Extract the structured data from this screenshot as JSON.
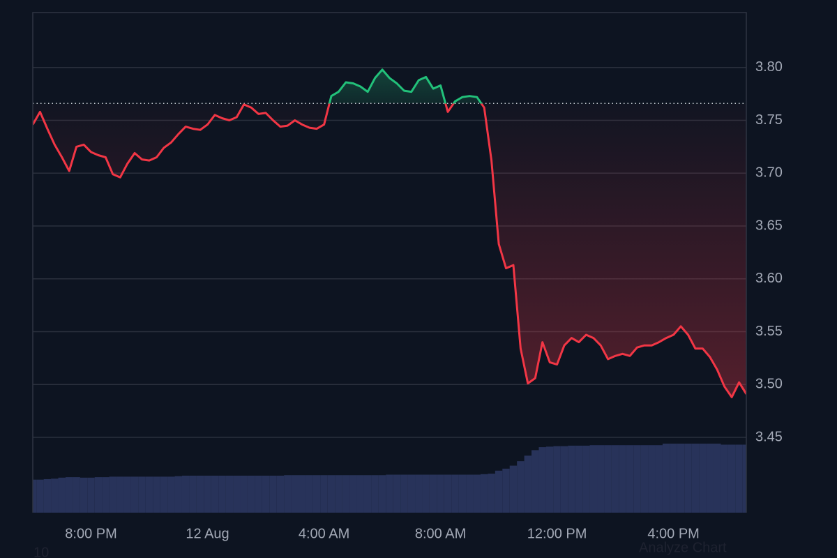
{
  "chart_data": {
    "type": "line",
    "x": [
      18,
      18.25,
      18.5,
      18.75,
      19,
      19.25,
      19.5,
      19.75,
      20,
      20.25,
      20.5,
      20.75,
      21,
      21.25,
      21.5,
      21.75,
      22,
      22.25,
      22.5,
      22.75,
      23,
      23.25,
      23.5,
      23.75,
      24,
      24.25,
      24.5,
      24.75,
      25,
      25.25,
      25.5,
      25.75,
      26,
      26.25,
      26.5,
      26.75,
      27,
      27.25,
      27.5,
      27.75,
      28,
      28.25,
      28.5,
      28.75,
      29,
      29.25,
      29.5,
      29.75,
      30,
      30.25,
      30.5,
      30.75,
      31,
      31.25,
      31.5,
      31.75,
      32,
      32.25,
      32.5,
      32.75,
      33,
      33.25,
      33.5,
      33.75,
      34,
      34.25,
      34.5,
      34.75,
      35,
      35.25,
      35.5,
      35.75,
      36,
      36.25,
      36.5,
      36.75,
      37,
      37.25,
      37.5,
      37.75,
      38,
      38.25,
      38.5,
      38.75,
      39,
      39.25,
      39.5,
      39.75,
      40,
      40.25,
      40.5,
      40.75,
      41,
      41.25,
      41.5,
      41.75,
      42,
      42.25,
      42.5
    ],
    "values": [
      3.746,
      3.758,
      3.742,
      3.727,
      3.715,
      3.702,
      3.725,
      3.727,
      3.72,
      3.717,
      3.715,
      3.699,
      3.696,
      3.709,
      3.719,
      3.713,
      3.712,
      3.715,
      3.724,
      3.729,
      3.737,
      3.744,
      3.742,
      3.741,
      3.746,
      3.755,
      3.752,
      3.75,
      3.753,
      3.765,
      3.762,
      3.756,
      3.757,
      3.75,
      3.744,
      3.745,
      3.75,
      3.746,
      3.743,
      3.742,
      3.746,
      3.773,
      3.777,
      3.786,
      3.785,
      3.782,
      3.777,
      3.79,
      3.798,
      3.79,
      3.785,
      3.778,
      3.777,
      3.788,
      3.791,
      3.78,
      3.783,
      3.758,
      3.768,
      3.772,
      3.773,
      3.772,
      3.762,
      3.712,
      3.633,
      3.61,
      3.613,
      3.534,
      3.501,
      3.506,
      3.54,
      3.521,
      3.519,
      3.537,
      3.544,
      3.54,
      3.547,
      3.544,
      3.537,
      3.524,
      3.527,
      3.529,
      3.527,
      3.535,
      3.537,
      3.537,
      3.54,
      3.544,
      3.547,
      3.555,
      3.547,
      3.534,
      3.534,
      3.526,
      3.514,
      3.498,
      3.488,
      3.502,
      3.491
    ],
    "color_up": "#22c17a",
    "color_down": "#f23645",
    "baseline": 3.766,
    "volume": {
      "color": "#28335a",
      "ylim": [
        0,
        100
      ],
      "values": [
        6.6,
        6.6,
        6.7,
        6.8,
        7.0,
        7.1,
        7.1,
        7.0,
        7.0,
        7.1,
        7.1,
        7.2,
        7.2,
        7.2,
        7.2,
        7.2,
        7.2,
        7.2,
        7.2,
        7.2,
        7.3,
        7.4,
        7.4,
        7.4,
        7.4,
        7.4,
        7.4,
        7.4,
        7.4,
        7.4,
        7.4,
        7.4,
        7.4,
        7.4,
        7.4,
        7.5,
        7.5,
        7.5,
        7.5,
        7.5,
        7.5,
        7.5,
        7.5,
        7.5,
        7.5,
        7.5,
        7.5,
        7.5,
        7.5,
        7.6,
        7.6,
        7.6,
        7.6,
        7.6,
        7.6,
        7.6,
        7.6,
        7.6,
        7.6,
        7.6,
        7.6,
        7.6,
        7.7,
        7.8,
        8.4,
        8.8,
        9.4,
        10.3,
        11.4,
        12.5,
        13.1,
        13.2,
        13.3,
        13.3,
        13.4,
        13.4,
        13.4,
        13.5,
        13.5,
        13.5,
        13.5,
        13.5,
        13.5,
        13.5,
        13.5,
        13.5,
        13.5,
        13.8,
        13.8,
        13.8,
        13.8,
        13.8,
        13.8,
        13.8,
        13.8,
        13.6,
        13.6,
        13.6,
        13.6
      ]
    },
    "xlim": [
      18,
      42.5
    ],
    "xticks": [
      {
        "value": 20,
        "label": "8:00 PM"
      },
      {
        "value": 24,
        "label": "12 Aug"
      },
      {
        "value": 28,
        "label": "4:00 AM"
      },
      {
        "value": 32,
        "label": "8:00 AM"
      },
      {
        "value": 36,
        "label": "12:00 PM"
      },
      {
        "value": 40,
        "label": "4:00 PM"
      }
    ],
    "ylim": [
      3.3787,
      3.852
    ],
    "yticks": [
      3.45,
      {
        "value": 3.5,
        "label": "3.50"
      },
      3.55,
      {
        "value": 3.6,
        "label": "3.60"
      },
      3.65,
      {
        "value": 3.7,
        "label": "3.70"
      },
      3.75,
      {
        "value": 3.8,
        "label": "3.80"
      }
    ],
    "grid": true,
    "annotations": [
      "10",
      "Analyze Chart"
    ]
  }
}
